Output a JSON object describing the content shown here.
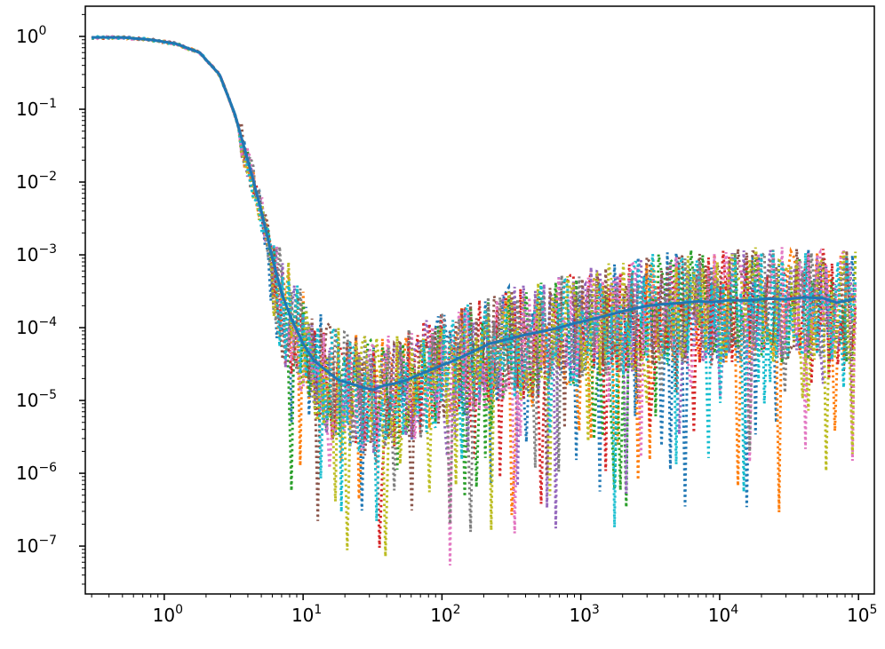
{
  "chart_data": {
    "type": "line",
    "title": "",
    "xlabel": "",
    "ylabel": "",
    "xscale": "log",
    "yscale": "log",
    "xlim": [
      0.27,
      130000
    ],
    "ylim": [
      2.2e-08,
      2.6
    ],
    "grid": false,
    "legend": "none",
    "x_ticks": [
      {
        "value": 1,
        "base": "10",
        "exp": "0"
      },
      {
        "value": 10,
        "base": "10",
        "exp": "1"
      },
      {
        "value": 100,
        "base": "10",
        "exp": "2"
      },
      {
        "value": 1000,
        "base": "10",
        "exp": "3"
      },
      {
        "value": 10000,
        "base": "10",
        "exp": "4"
      },
      {
        "value": 100000,
        "base": "10",
        "exp": "5"
      }
    ],
    "y_ticks": [
      {
        "value": 1,
        "base": "10",
        "exp": "0"
      },
      {
        "value": 0.1,
        "base": "10",
        "exp": "−1"
      },
      {
        "value": 0.01,
        "base": "10",
        "exp": "−2"
      },
      {
        "value": 0.001,
        "base": "10",
        "exp": "−3"
      },
      {
        "value": 0.0001,
        "base": "10",
        "exp": "−4"
      },
      {
        "value": 1e-05,
        "base": "10",
        "exp": "−5"
      },
      {
        "value": 1e-06,
        "base": "10",
        "exp": "−6"
      },
      {
        "value": 1e-07,
        "base": "10",
        "exp": "−7"
      }
    ],
    "mean_series": {
      "color": "#1f77b4",
      "style": "solid",
      "x": [
        0.3,
        0.5,
        0.8,
        1.2,
        1.8,
        2.5,
        3.2,
        4.0,
        5.0,
        6.0,
        7.0,
        8.0,
        10,
        12,
        15,
        18,
        22,
        27,
        32,
        38,
        45,
        55,
        70,
        90,
        120,
        160,
        220,
        300,
        400,
        550,
        700,
        900,
        1200,
        1600,
        2200,
        3000,
        4000,
        5500,
        7000,
        9000,
        12000,
        16000,
        22000,
        30000,
        40000,
        55000,
        70000,
        95000
      ],
      "y": [
        0.97,
        0.97,
        0.9,
        0.8,
        0.6,
        0.3,
        0.09,
        0.02,
        0.004,
        0.0009,
        0.0003,
        0.00015,
        6e-05,
        3.5e-05,
        2.5e-05,
        1.9e-05,
        1.7e-05,
        1.5e-05,
        1.4e-05,
        1.6e-05,
        1.7e-05,
        1.9e-05,
        2.3e-05,
        2.8e-05,
        3.5e-05,
        4.5e-05,
        6e-05,
        7e-05,
        8e-05,
        9e-05,
        0.0001,
        0.000115,
        0.00013,
        0.00015,
        0.000175,
        0.0002,
        0.00021,
        0.00022,
        0.00023,
        0.000225,
        0.00024,
        0.000235,
        0.00025,
        0.000245,
        0.00026,
        0.000255,
        0.00022,
        0.00025
      ]
    },
    "trial_series": {
      "count": 10,
      "style": "dotted",
      "colors": [
        "#1f77b4",
        "#ff7f0e",
        "#2ca02c",
        "#d62728",
        "#9467bd",
        "#8c564b",
        "#e377c2",
        "#7f7f7f",
        "#bcbd22",
        "#17becf"
      ],
      "noise_range": [
        2.3e-08,
        0.0013
      ]
    }
  }
}
